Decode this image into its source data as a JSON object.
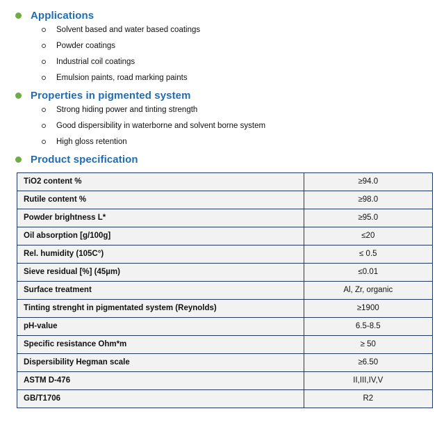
{
  "document": {
    "sections": [
      {
        "title": "Applications",
        "items": [
          "Solvent based and water based coatings",
          "Powder coatings",
          "Industrial coil coatings",
          "Emulsion paints, road marking paints"
        ]
      },
      {
        "title": "Properties in pigmented system",
        "items": [
          "Strong hiding power and tinting strength",
          "Good dispersibility in waterborne and solvent borne system",
          "High gloss retention"
        ]
      },
      {
        "title": "Product specification"
      }
    ],
    "spec_table": {
      "rows": [
        {
          "label": "TiO2 content %",
          "value": "≥94.0"
        },
        {
          "label": "Rutile content %",
          "value": "≥98.0"
        },
        {
          "label": "Powder brightness L*",
          "value": "≥95.0"
        },
        {
          "label": "Oil absorption [g/100g]",
          "value": "≤20"
        },
        {
          "label": "Rel. humidity (105C°)",
          "value": "≤ 0.5"
        },
        {
          "label": "Sieve residual [%] (45µm)",
          "value": "≤0.01"
        },
        {
          "label": "Surface treatment",
          "value": "Al, Zr, organic"
        },
        {
          "label": "Tinting strenght in pigmentated system (Reynolds)",
          "value": "≥1900"
        },
        {
          "label": "pH-value",
          "value": "6.5-8.5"
        },
        {
          "label": "Specific resistance Ohm*m",
          "value": "≥ 50"
        },
        {
          "label": "Dispersibility Hegman scale",
          "value": "≥6.50"
        },
        {
          "label": "ASTM D-476",
          "value": "II,III,IV,V"
        },
        {
          "label": "GB/T1706",
          "value": "R2"
        }
      ]
    }
  },
  "colors": {
    "heading_blue": "#1f6cb0",
    "bullet_green": "#6fac46",
    "table_background": "#f2f2f2",
    "table_border": "#1f3864"
  }
}
